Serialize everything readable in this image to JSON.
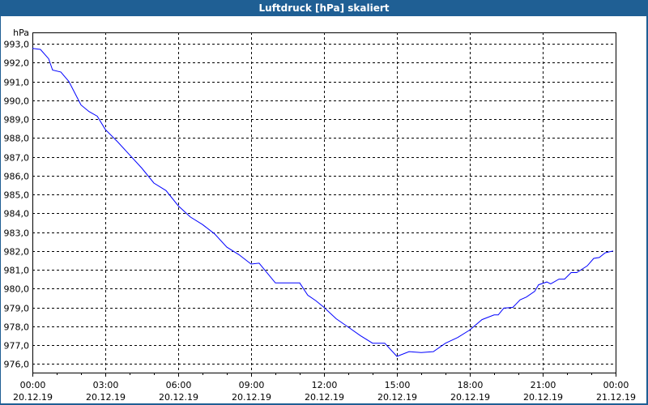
{
  "window": {
    "title": "Luftdruck [hPa] skaliert"
  },
  "chart_data": {
    "type": "line",
    "title": "Luftdruck [hPa] skaliert",
    "ylabel": "hPa",
    "xlabel": "",
    "ylim": [
      975.6,
      993.6
    ],
    "xlim": [
      0,
      24
    ],
    "yticks": [
      976,
      977,
      978,
      979,
      980,
      981,
      982,
      983,
      984,
      985,
      986,
      987,
      988,
      989,
      990,
      991,
      992,
      993
    ],
    "ytick_labels": [
      "976,0",
      "977,0",
      "978,0",
      "979,0",
      "980,0",
      "981,0",
      "982,0",
      "983,0",
      "984,0",
      "985,0",
      "986,0",
      "987,0",
      "988,0",
      "989,0",
      "990,0",
      "991,0",
      "992,0",
      "993,0"
    ],
    "xticks": [
      0,
      3,
      6,
      9,
      12,
      15,
      18,
      21,
      24
    ],
    "xtick_labels": [
      {
        "time": "00:00",
        "date": "20.12.19"
      },
      {
        "time": "03:00",
        "date": "20.12.19"
      },
      {
        "time": "06:00",
        "date": "20.12.19"
      },
      {
        "time": "09:00",
        "date": "20.12.19"
      },
      {
        "time": "12:00",
        "date": "20.12.19"
      },
      {
        "time": "15:00",
        "date": "20.12.19"
      },
      {
        "time": "18:00",
        "date": "20.12.19"
      },
      {
        "time": "21:00",
        "date": "20.12.19"
      },
      {
        "time": "00:00",
        "date": "21.12.19"
      }
    ],
    "grid": true,
    "series": [
      {
        "name": "Luftdruck",
        "color": "#0000ff",
        "x": [
          0,
          0.33,
          0.67,
          0.83,
          1.17,
          1.5,
          2.0,
          2.33,
          2.67,
          3.0,
          3.5,
          4.0,
          4.5,
          5.0,
          5.5,
          6.0,
          6.5,
          7.0,
          7.5,
          8.0,
          8.5,
          9.0,
          9.33,
          10.0,
          10.5,
          11.0,
          11.33,
          11.67,
          12.0,
          12.5,
          13.0,
          13.5,
          14.0,
          14.5,
          15.0,
          15.5,
          16.0,
          16.5,
          17.0,
          17.5,
          18.0,
          18.5,
          19.0,
          19.17,
          19.4,
          19.77,
          20.07,
          20.33,
          20.67,
          20.83,
          21.17,
          21.33,
          21.67,
          21.9,
          22.17,
          22.4,
          22.83,
          23.1,
          23.33,
          23.57,
          23.9
        ],
        "y": [
          992.75,
          992.7,
          992.2,
          991.6,
          991.5,
          991.0,
          989.75,
          989.4,
          989.15,
          988.45,
          987.8,
          987.1,
          986.4,
          985.6,
          985.2,
          984.4,
          983.8,
          983.4,
          982.9,
          982.2,
          981.8,
          981.3,
          981.35,
          980.3,
          980.3,
          980.3,
          979.65,
          979.35,
          979.0,
          978.4,
          977.95,
          977.5,
          977.1,
          977.1,
          976.4,
          976.65,
          976.6,
          976.65,
          977.1,
          977.4,
          977.8,
          978.35,
          978.6,
          978.6,
          978.96,
          979.0,
          979.4,
          979.55,
          979.85,
          980.2,
          980.35,
          980.25,
          980.5,
          980.5,
          980.85,
          980.85,
          981.2,
          981.6,
          981.65,
          981.9,
          982.0
        ]
      }
    ]
  }
}
